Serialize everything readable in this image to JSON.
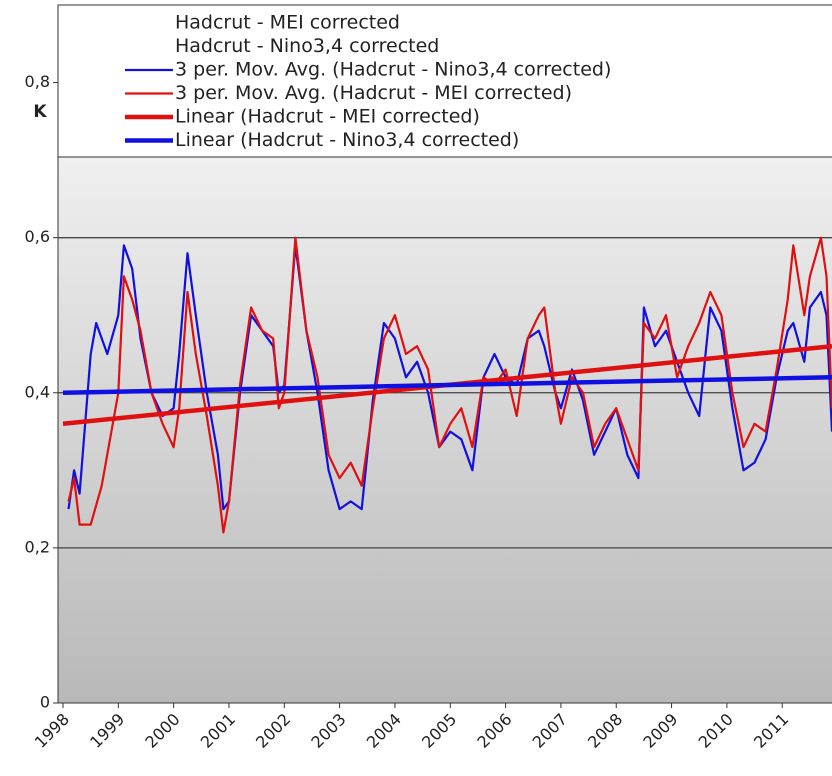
{
  "chart_data": {
    "type": "line",
    "y_label": "K",
    "xlim": [
      1998,
      2011.9
    ],
    "ylim": [
      0,
      0.9
    ],
    "xticks": [
      1998,
      1999,
      2000,
      2001,
      2002,
      2003,
      2004,
      2005,
      2006,
      2007,
      2008,
      2009,
      2010,
      2011
    ],
    "yticks": [
      0,
      {
        "value": 0.2,
        "label": "0,2"
      },
      {
        "value": 0.4,
        "label": "0,4"
      },
      {
        "value": 0.6,
        "label": "0,6"
      },
      {
        "value": 0.8,
        "label": "0,8"
      }
    ],
    "grid": true,
    "legend": "top",
    "series": [
      {
        "name": "Hadcrut - MEI corrected"
      },
      {
        "name": "Hadcrut - Nino3,4 corrected"
      },
      {
        "name": "3 per. Mov. Avg. (Hadcrut - Nino3,4 corrected)",
        "color": "#1010e0",
        "width": 2.2,
        "x": [
          1998.1,
          1998.2,
          1998.3,
          1998.5,
          1998.6,
          1998.8,
          1999.0,
          1999.1,
          1999.25,
          1999.4,
          1999.6,
          1999.8,
          2000.0,
          2000.1,
          2000.25,
          2000.4,
          2000.6,
          2000.8,
          2000.9,
          2001.0,
          2001.2,
          2001.4,
          2001.6,
          2001.8,
          2001.9,
          2002.0,
          2002.2,
          2002.4,
          2002.6,
          2002.8,
          2003.0,
          2003.2,
          2003.4,
          2003.6,
          2003.8,
          2004.0,
          2004.2,
          2004.4,
          2004.6,
          2004.8,
          2005.0,
          2005.2,
          2005.4,
          2005.6,
          2005.8,
          2006.0,
          2006.2,
          2006.4,
          2006.6,
          2006.7,
          2006.9,
          2007.0,
          2007.2,
          2007.4,
          2007.6,
          2007.8,
          2008.0,
          2008.2,
          2008.4,
          2008.5,
          2008.7,
          2008.9,
          2009.1,
          2009.3,
          2009.5,
          2009.7,
          2009.9,
          2010.1,
          2010.3,
          2010.5,
          2010.7,
          2010.9,
          2011.1,
          2011.2,
          2011.4,
          2011.5,
          2011.7,
          2011.8,
          2011.9
        ],
        "values": [
          0.25,
          0.3,
          0.27,
          0.45,
          0.49,
          0.45,
          0.5,
          0.59,
          0.56,
          0.47,
          0.4,
          0.37,
          0.38,
          0.45,
          0.58,
          0.5,
          0.4,
          0.32,
          0.25,
          0.26,
          0.4,
          0.5,
          0.48,
          0.46,
          0.4,
          0.41,
          0.59,
          0.48,
          0.4,
          0.3,
          0.25,
          0.26,
          0.25,
          0.39,
          0.49,
          0.47,
          0.42,
          0.44,
          0.4,
          0.33,
          0.35,
          0.34,
          0.3,
          0.42,
          0.45,
          0.42,
          0.41,
          0.47,
          0.48,
          0.46,
          0.4,
          0.38,
          0.43,
          0.39,
          0.32,
          0.35,
          0.38,
          0.32,
          0.29,
          0.51,
          0.46,
          0.48,
          0.44,
          0.4,
          0.37,
          0.51,
          0.48,
          0.38,
          0.3,
          0.31,
          0.34,
          0.42,
          0.48,
          0.49,
          0.44,
          0.51,
          0.53,
          0.5,
          0.35
        ]
      },
      {
        "name": "3 per. Mov. Avg. (Hadcrut - MEI corrected)",
        "color": "#e01010",
        "width": 2.2,
        "x": [
          1998.1,
          1998.2,
          1998.3,
          1998.5,
          1998.7,
          1999.0,
          1999.1,
          1999.25,
          1999.4,
          1999.6,
          1999.8,
          2000.0,
          2000.1,
          2000.25,
          2000.4,
          2000.6,
          2000.8,
          2000.9,
          2001.0,
          2001.2,
          2001.4,
          2001.6,
          2001.8,
          2001.9,
          2002.0,
          2002.2,
          2002.4,
          2002.6,
          2002.8,
          2003.0,
          2003.2,
          2003.4,
          2003.6,
          2003.8,
          2004.0,
          2004.2,
          2004.4,
          2004.6,
          2004.8,
          2005.0,
          2005.2,
          2005.4,
          2005.6,
          2005.8,
          2006.0,
          2006.2,
          2006.4,
          2006.6,
          2006.7,
          2006.9,
          2007.0,
          2007.2,
          2007.4,
          2007.6,
          2007.8,
          2008.0,
          2008.2,
          2008.4,
          2008.5,
          2008.7,
          2008.9,
          2009.1,
          2009.3,
          2009.5,
          2009.7,
          2009.9,
          2010.1,
          2010.3,
          2010.5,
          2010.7,
          2010.9,
          2011.1,
          2011.2,
          2011.4,
          2011.5,
          2011.7,
          2011.8,
          2011.9
        ],
        "values": [
          0.26,
          0.29,
          0.23,
          0.23,
          0.28,
          0.4,
          0.55,
          0.52,
          0.48,
          0.4,
          0.36,
          0.33,
          0.38,
          0.53,
          0.45,
          0.37,
          0.28,
          0.22,
          0.26,
          0.41,
          0.51,
          0.48,
          0.47,
          0.38,
          0.4,
          0.6,
          0.48,
          0.42,
          0.32,
          0.29,
          0.31,
          0.28,
          0.38,
          0.47,
          0.5,
          0.45,
          0.46,
          0.43,
          0.33,
          0.36,
          0.38,
          0.33,
          0.42,
          0.41,
          0.43,
          0.37,
          0.47,
          0.5,
          0.51,
          0.4,
          0.36,
          0.42,
          0.4,
          0.33,
          0.36,
          0.38,
          0.34,
          0.3,
          0.49,
          0.47,
          0.5,
          0.42,
          0.46,
          0.49,
          0.53,
          0.5,
          0.4,
          0.33,
          0.36,
          0.35,
          0.43,
          0.52,
          0.59,
          0.5,
          0.55,
          0.6,
          0.55,
          0.38
        ]
      },
      {
        "name": "Linear (Hadcrut - MEI corrected)",
        "color": "#e01010",
        "width": 4.5,
        "x": [
          1998,
          2011.9
        ],
        "values": [
          0.36,
          0.46
        ]
      },
      {
        "name": "Linear (Hadcrut - Nino3,4 corrected)",
        "color": "#1010e0",
        "width": 4.5,
        "x": [
          1998,
          2011.9
        ],
        "values": [
          0.4,
          0.42
        ]
      }
    ]
  }
}
